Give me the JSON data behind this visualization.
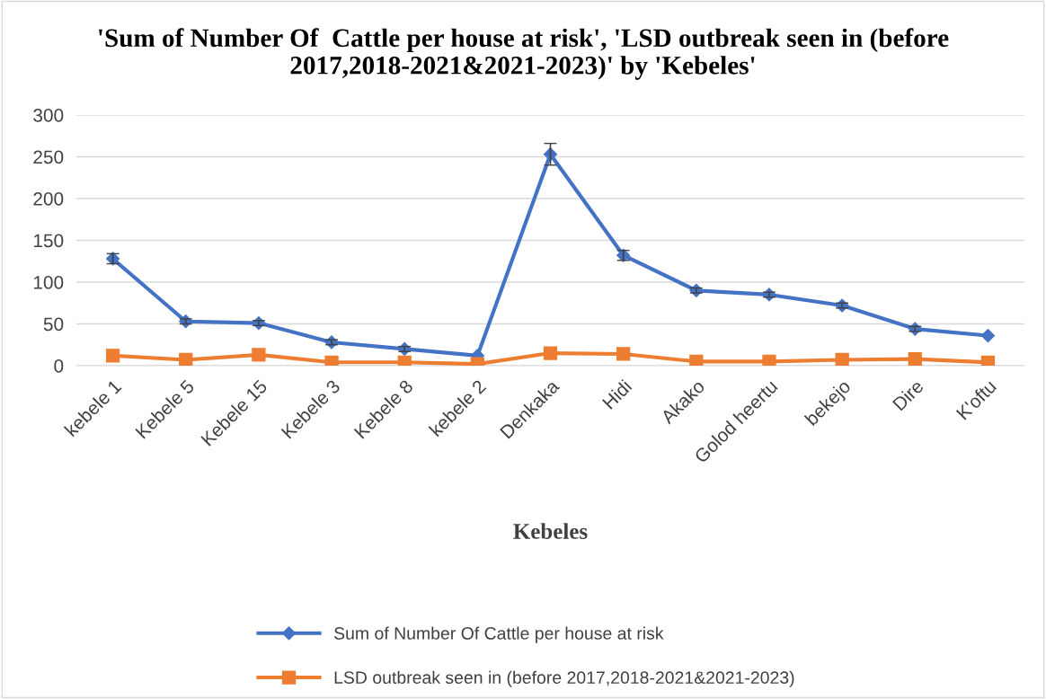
{
  "chart_data": {
    "type": "line",
    "title": "'Sum of Number Of  Cattle per house at risk', 'LSD outbreak seen in (before 2017,2018-2021&2021-2023)' by 'Kebeles'",
    "xlabel": "Kebeles",
    "categories": [
      "kebele 1",
      "Kebele 5",
      "Kebele 15",
      "Kebele 3",
      "Kebele 8",
      "kebele 2",
      "Denkaka",
      "Hidi",
      "Akako",
      "Golod heertu",
      "bekejo",
      "Dire",
      "K'oftu"
    ],
    "series": [
      {
        "name": "Sum of Number Of Cattle per house at risk",
        "color": "#4472c4",
        "marker": "diamond",
        "values": [
          128,
          53,
          51,
          28,
          20,
          12,
          253,
          132,
          90,
          85,
          72,
          44,
          36
        ],
        "errors": [
          6,
          3,
          3,
          3,
          3,
          null,
          13,
          6,
          3,
          3,
          3,
          3,
          null
        ]
      },
      {
        "name": "LSD outbreak seen in (before 2017,2018-2021&2021-2023)",
        "color": "#ed7d31",
        "marker": "square",
        "values": [
          12,
          7,
          13,
          4,
          4,
          2,
          15,
          14,
          5,
          5,
          7,
          8,
          4
        ]
      }
    ],
    "ylim": [
      0,
      300
    ],
    "yticks": [
      0,
      50,
      100,
      150,
      200,
      250,
      300
    ],
    "grid": "y",
    "legend": "bottom",
    "line_style": "solid"
  }
}
